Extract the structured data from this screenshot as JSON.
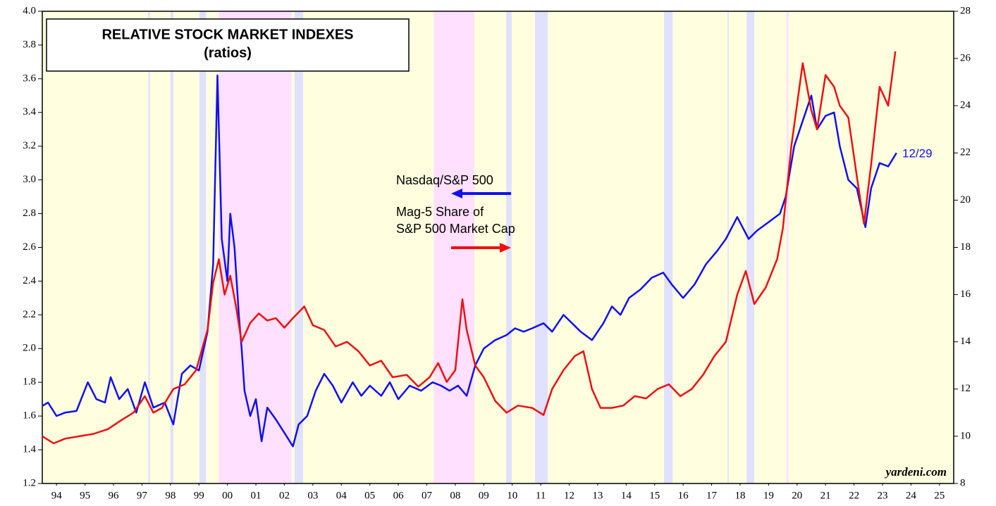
{
  "chart_data": {
    "type": "line",
    "title": "RELATIVE STOCK MARKET INDEXES",
    "subtitle": "(ratios)",
    "annotations": {
      "nasdaq": "Nasdaq/S&P 500",
      "mag1": "Mag-5 Share of",
      "mag2": "S&P 500 Market Cap",
      "date": "12/29",
      "source": "yardeni.com"
    },
    "xlim": [
      1994,
      2026
    ],
    "xticks": [
      {
        "value": 1994.5,
        "label": "94"
      },
      {
        "value": 1995.5,
        "label": "95"
      },
      {
        "value": 1996.5,
        "label": "96"
      },
      {
        "value": 1997.5,
        "label": "97"
      },
      {
        "value": 1998.5,
        "label": "98"
      },
      {
        "value": 1999.5,
        "label": "99"
      },
      {
        "value": 2000.5,
        "label": "00"
      },
      {
        "value": 2001.5,
        "label": "01"
      },
      {
        "value": 2002.5,
        "label": "02"
      },
      {
        "value": 2003.5,
        "label": "03"
      },
      {
        "value": 2004.5,
        "label": "04"
      },
      {
        "value": 2005.5,
        "label": "05"
      },
      {
        "value": 2006.5,
        "label": "06"
      },
      {
        "value": 2007.5,
        "label": "07"
      },
      {
        "value": 2008.5,
        "label": "08"
      },
      {
        "value": 2009.5,
        "label": "09"
      },
      {
        "value": 2010.5,
        "label": "10"
      },
      {
        "value": 2011.5,
        "label": "11"
      },
      {
        "value": 2012.5,
        "label": "12"
      },
      {
        "value": 2013.5,
        "label": "13"
      },
      {
        "value": 2014.5,
        "label": "14"
      },
      {
        "value": 2015.5,
        "label": "15"
      },
      {
        "value": 2016.5,
        "label": "16"
      },
      {
        "value": 2017.5,
        "label": "17"
      },
      {
        "value": 2018.5,
        "label": "18"
      },
      {
        "value": 2019.5,
        "label": "19"
      },
      {
        "value": 2020.5,
        "label": "20"
      },
      {
        "value": 2021.5,
        "label": "21"
      },
      {
        "value": 2022.5,
        "label": "22"
      },
      {
        "value": 2023.5,
        "label": "23"
      },
      {
        "value": 2024.5,
        "label": "24"
      },
      {
        "value": 2025.5,
        "label": "25"
      }
    ],
    "ylim": [
      1.2,
      4.0
    ],
    "yticks": [
      1.2,
      1.4,
      1.6,
      1.8,
      {
        "value": 2.0,
        "label": "2.0"
      },
      2.2,
      2.4,
      2.6,
      2.8,
      {
        "value": 3.0,
        "label": "3.0"
      },
      3.2,
      3.4,
      3.6,
      3.8,
      {
        "value": 4.0,
        "label": "4.0"
      }
    ],
    "y2lim": [
      8,
      28
    ],
    "y2ticks": [
      8,
      10,
      12,
      14,
      16,
      18,
      20,
      22,
      24,
      26,
      28
    ],
    "background": "#ffffe0",
    "shaded_regions": [
      {
        "start": 1997.72,
        "end": 1997.78,
        "color": "#e0e0ff"
      },
      {
        "start": 1998.5,
        "end": 1998.6,
        "color": "#e0e0ff"
      },
      {
        "start": 1999.52,
        "end": 1999.75,
        "color": "#e0e0ff"
      },
      {
        "start": 2000.2,
        "end": 2002.75,
        "color": "#ffe0ff"
      },
      {
        "start": 2002.86,
        "end": 2003.16,
        "color": "#e0e0ff"
      },
      {
        "start": 2007.74,
        "end": 2009.17,
        "color": "#ffe0ff"
      },
      {
        "start": 2010.29,
        "end": 2010.48,
        "color": "#e0e0ff"
      },
      {
        "start": 2011.3,
        "end": 2011.75,
        "color": "#e0e0ff"
      },
      {
        "start": 2015.83,
        "end": 2016.13,
        "color": "#e0e0ff"
      },
      {
        "start": 2018.06,
        "end": 2018.1,
        "color": "#e0e0ff"
      },
      {
        "start": 2018.73,
        "end": 2019.0,
        "color": "#e0e0ff"
      },
      {
        "start": 2020.13,
        "end": 2020.2,
        "color": "#ffe0ff"
      }
    ],
    "series": [
      {
        "name": "Nasdaq/S&P 500",
        "color": "#1010ee",
        "axis": "y",
        "x": [
          1994.0,
          1994.2,
          1994.5,
          1994.8,
          1995.2,
          1995.6,
          1995.9,
          1996.2,
          1996.4,
          1996.7,
          1997.0,
          1997.3,
          1997.6,
          1997.9,
          1998.3,
          1998.6,
          1998.9,
          1999.2,
          1999.5,
          1999.8,
          2000.0,
          2000.15,
          2000.3,
          2000.5,
          2000.6,
          2000.75,
          2000.9,
          2001.0,
          2001.1,
          2001.3,
          2001.5,
          2001.7,
          2001.9,
          2002.2,
          2002.5,
          2002.8,
          2003.0,
          2003.3,
          2003.6,
          2003.9,
          2004.2,
          2004.5,
          2004.9,
          2005.2,
          2005.5,
          2005.9,
          2006.2,
          2006.5,
          2006.9,
          2007.3,
          2007.7,
          2008.0,
          2008.3,
          2008.6,
          2008.9,
          2009.2,
          2009.5,
          2009.9,
          2010.3,
          2010.6,
          2010.9,
          2011.2,
          2011.6,
          2011.9,
          2012.3,
          2012.6,
          2012.9,
          2013.3,
          2013.7,
          2014.0,
          2014.3,
          2014.6,
          2015.0,
          2015.4,
          2015.8,
          2016.1,
          2016.5,
          2016.9,
          2017.3,
          2017.7,
          2018.0,
          2018.4,
          2018.8,
          2019.1,
          2019.5,
          2019.9,
          2020.1,
          2020.4,
          2020.7,
          2021.0,
          2021.2,
          2021.5,
          2021.8,
          2022.0,
          2022.3,
          2022.6,
          2022.9,
          2023.1,
          2023.4,
          2023.7,
          2023.99
        ],
        "values": [
          1.66,
          1.68,
          1.6,
          1.62,
          1.63,
          1.8,
          1.7,
          1.68,
          1.83,
          1.7,
          1.76,
          1.62,
          1.8,
          1.65,
          1.68,
          1.55,
          1.85,
          1.9,
          1.87,
          2.1,
          2.5,
          3.62,
          2.65,
          2.4,
          2.8,
          2.6,
          2.2,
          2.0,
          1.75,
          1.6,
          1.7,
          1.45,
          1.65,
          1.58,
          1.5,
          1.42,
          1.55,
          1.6,
          1.75,
          1.85,
          1.78,
          1.68,
          1.8,
          1.72,
          1.78,
          1.72,
          1.8,
          1.7,
          1.78,
          1.75,
          1.8,
          1.78,
          1.75,
          1.78,
          1.72,
          1.9,
          2.0,
          2.05,
          2.08,
          2.12,
          2.1,
          2.12,
          2.15,
          2.1,
          2.2,
          2.15,
          2.1,
          2.05,
          2.15,
          2.25,
          2.2,
          2.3,
          2.35,
          2.42,
          2.45,
          2.38,
          2.3,
          2.38,
          2.5,
          2.58,
          2.65,
          2.78,
          2.65,
          2.7,
          2.75,
          2.8,
          2.9,
          3.2,
          3.35,
          3.5,
          3.3,
          3.38,
          3.4,
          3.2,
          3.0,
          2.95,
          2.72,
          2.95,
          3.1,
          3.08,
          3.16
        ]
      },
      {
        "name": "Mag-5 Share of S&P 500 Market Cap",
        "color": "#ee1010",
        "axis": "y2",
        "x": [
          1994.0,
          1994.4,
          1994.8,
          1995.3,
          1995.8,
          1996.3,
          1996.8,
          1997.2,
          1997.6,
          1997.9,
          1998.2,
          1998.6,
          1999.0,
          1999.4,
          1999.8,
          2000.0,
          2000.2,
          2000.4,
          2000.6,
          2000.8,
          2001.0,
          2001.3,
          2001.6,
          2001.9,
          2002.2,
          2002.5,
          2002.8,
          2003.2,
          2003.5,
          2003.9,
          2004.3,
          2004.7,
          2005.1,
          2005.5,
          2005.9,
          2006.3,
          2006.8,
          2007.2,
          2007.6,
          2007.9,
          2008.2,
          2008.5,
          2008.75,
          2008.9,
          2009.2,
          2009.5,
          2009.9,
          2010.3,
          2010.7,
          2011.2,
          2011.6,
          2011.9,
          2012.3,
          2012.7,
          2013.0,
          2013.3,
          2013.6,
          2014.0,
          2014.4,
          2014.8,
          2015.2,
          2015.6,
          2016.0,
          2016.4,
          2016.8,
          2017.2,
          2017.6,
          2018.0,
          2018.4,
          2018.7,
          2019.0,
          2019.4,
          2019.8,
          2020.0,
          2020.3,
          2020.7,
          2021.0,
          2021.2,
          2021.5,
          2021.8,
          2022.0,
          2022.3,
          2022.6,
          2022.85,
          2023.1,
          2023.4,
          2023.7,
          2023.95
        ],
        "values": [
          10.0,
          9.7,
          9.9,
          10.0,
          10.1,
          10.3,
          10.7,
          11.0,
          11.7,
          11.0,
          11.2,
          12.0,
          12.2,
          12.8,
          14.5,
          16.5,
          17.5,
          16.0,
          16.8,
          15.5,
          14.0,
          14.8,
          15.2,
          14.9,
          15.0,
          14.6,
          15.0,
          15.5,
          14.7,
          14.5,
          13.8,
          14.0,
          13.6,
          13.0,
          13.2,
          12.5,
          12.6,
          12.1,
          12.5,
          13.1,
          12.3,
          12.8,
          15.8,
          14.5,
          13.0,
          12.5,
          11.5,
          11.0,
          11.3,
          11.2,
          10.9,
          12.0,
          12.8,
          13.4,
          13.6,
          12.0,
          11.2,
          11.2,
          11.3,
          11.7,
          11.6,
          12.0,
          12.2,
          11.7,
          12.0,
          12.6,
          13.4,
          14.0,
          16.0,
          17.0,
          15.6,
          16.3,
          17.5,
          18.8,
          22.3,
          25.8,
          23.8,
          23.0,
          25.3,
          24.8,
          24.0,
          23.5,
          21.0,
          19.0,
          21.5,
          24.8,
          24.0,
          26.3
        ]
      }
    ]
  }
}
